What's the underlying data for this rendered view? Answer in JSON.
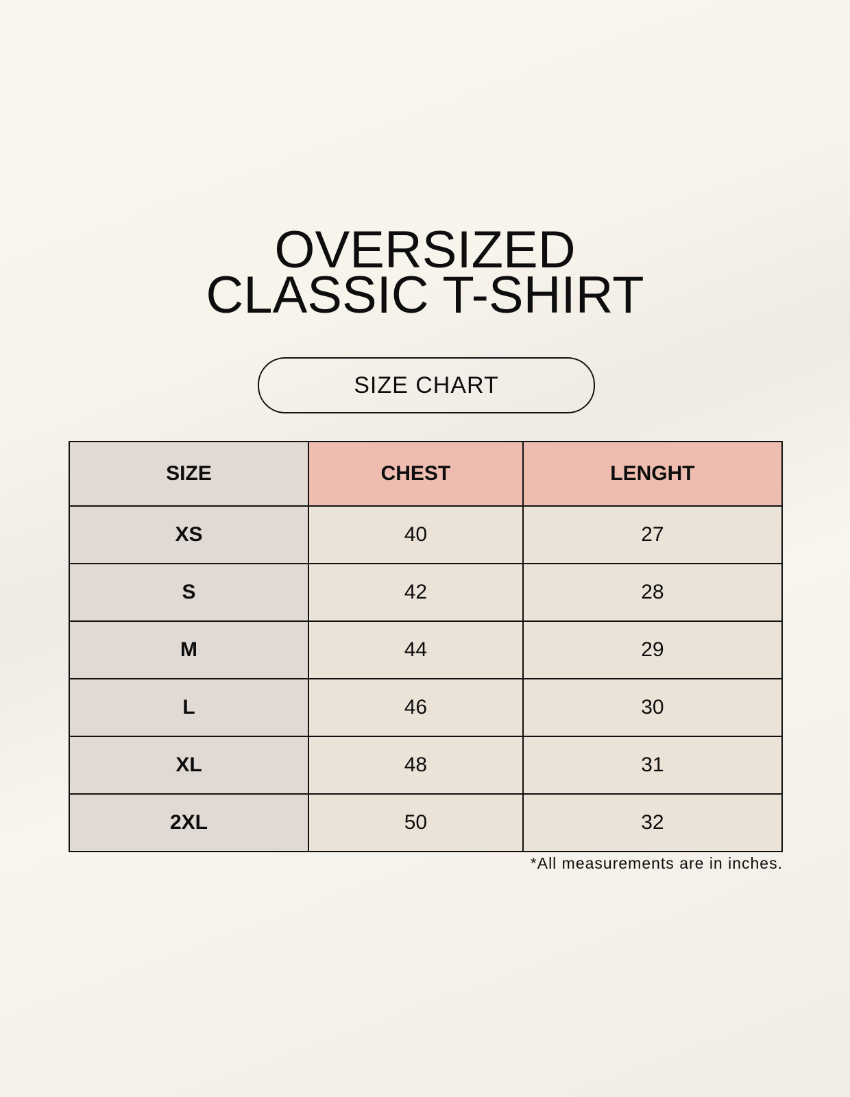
{
  "title": {
    "line1": "OVERSIZED",
    "line2": "CLASSIC T-SHIRT"
  },
  "badge": "SIZE CHART",
  "table": {
    "headers": [
      "SIZE",
      "CHEST",
      "LENGHT"
    ],
    "rows": [
      [
        "XS",
        "40",
        "27"
      ],
      [
        "S",
        "42",
        "28"
      ],
      [
        "M",
        "44",
        "29"
      ],
      [
        "L",
        "46",
        "30"
      ],
      [
        "XL",
        "48",
        "31"
      ],
      [
        "2XL",
        "50",
        "32"
      ]
    ]
  },
  "footnote": "*All measurements are in inches.",
  "colors": {
    "size_column": "#e1d9d3",
    "header_accent": "#eebdb0",
    "value_cells": "#ebe3d8"
  }
}
